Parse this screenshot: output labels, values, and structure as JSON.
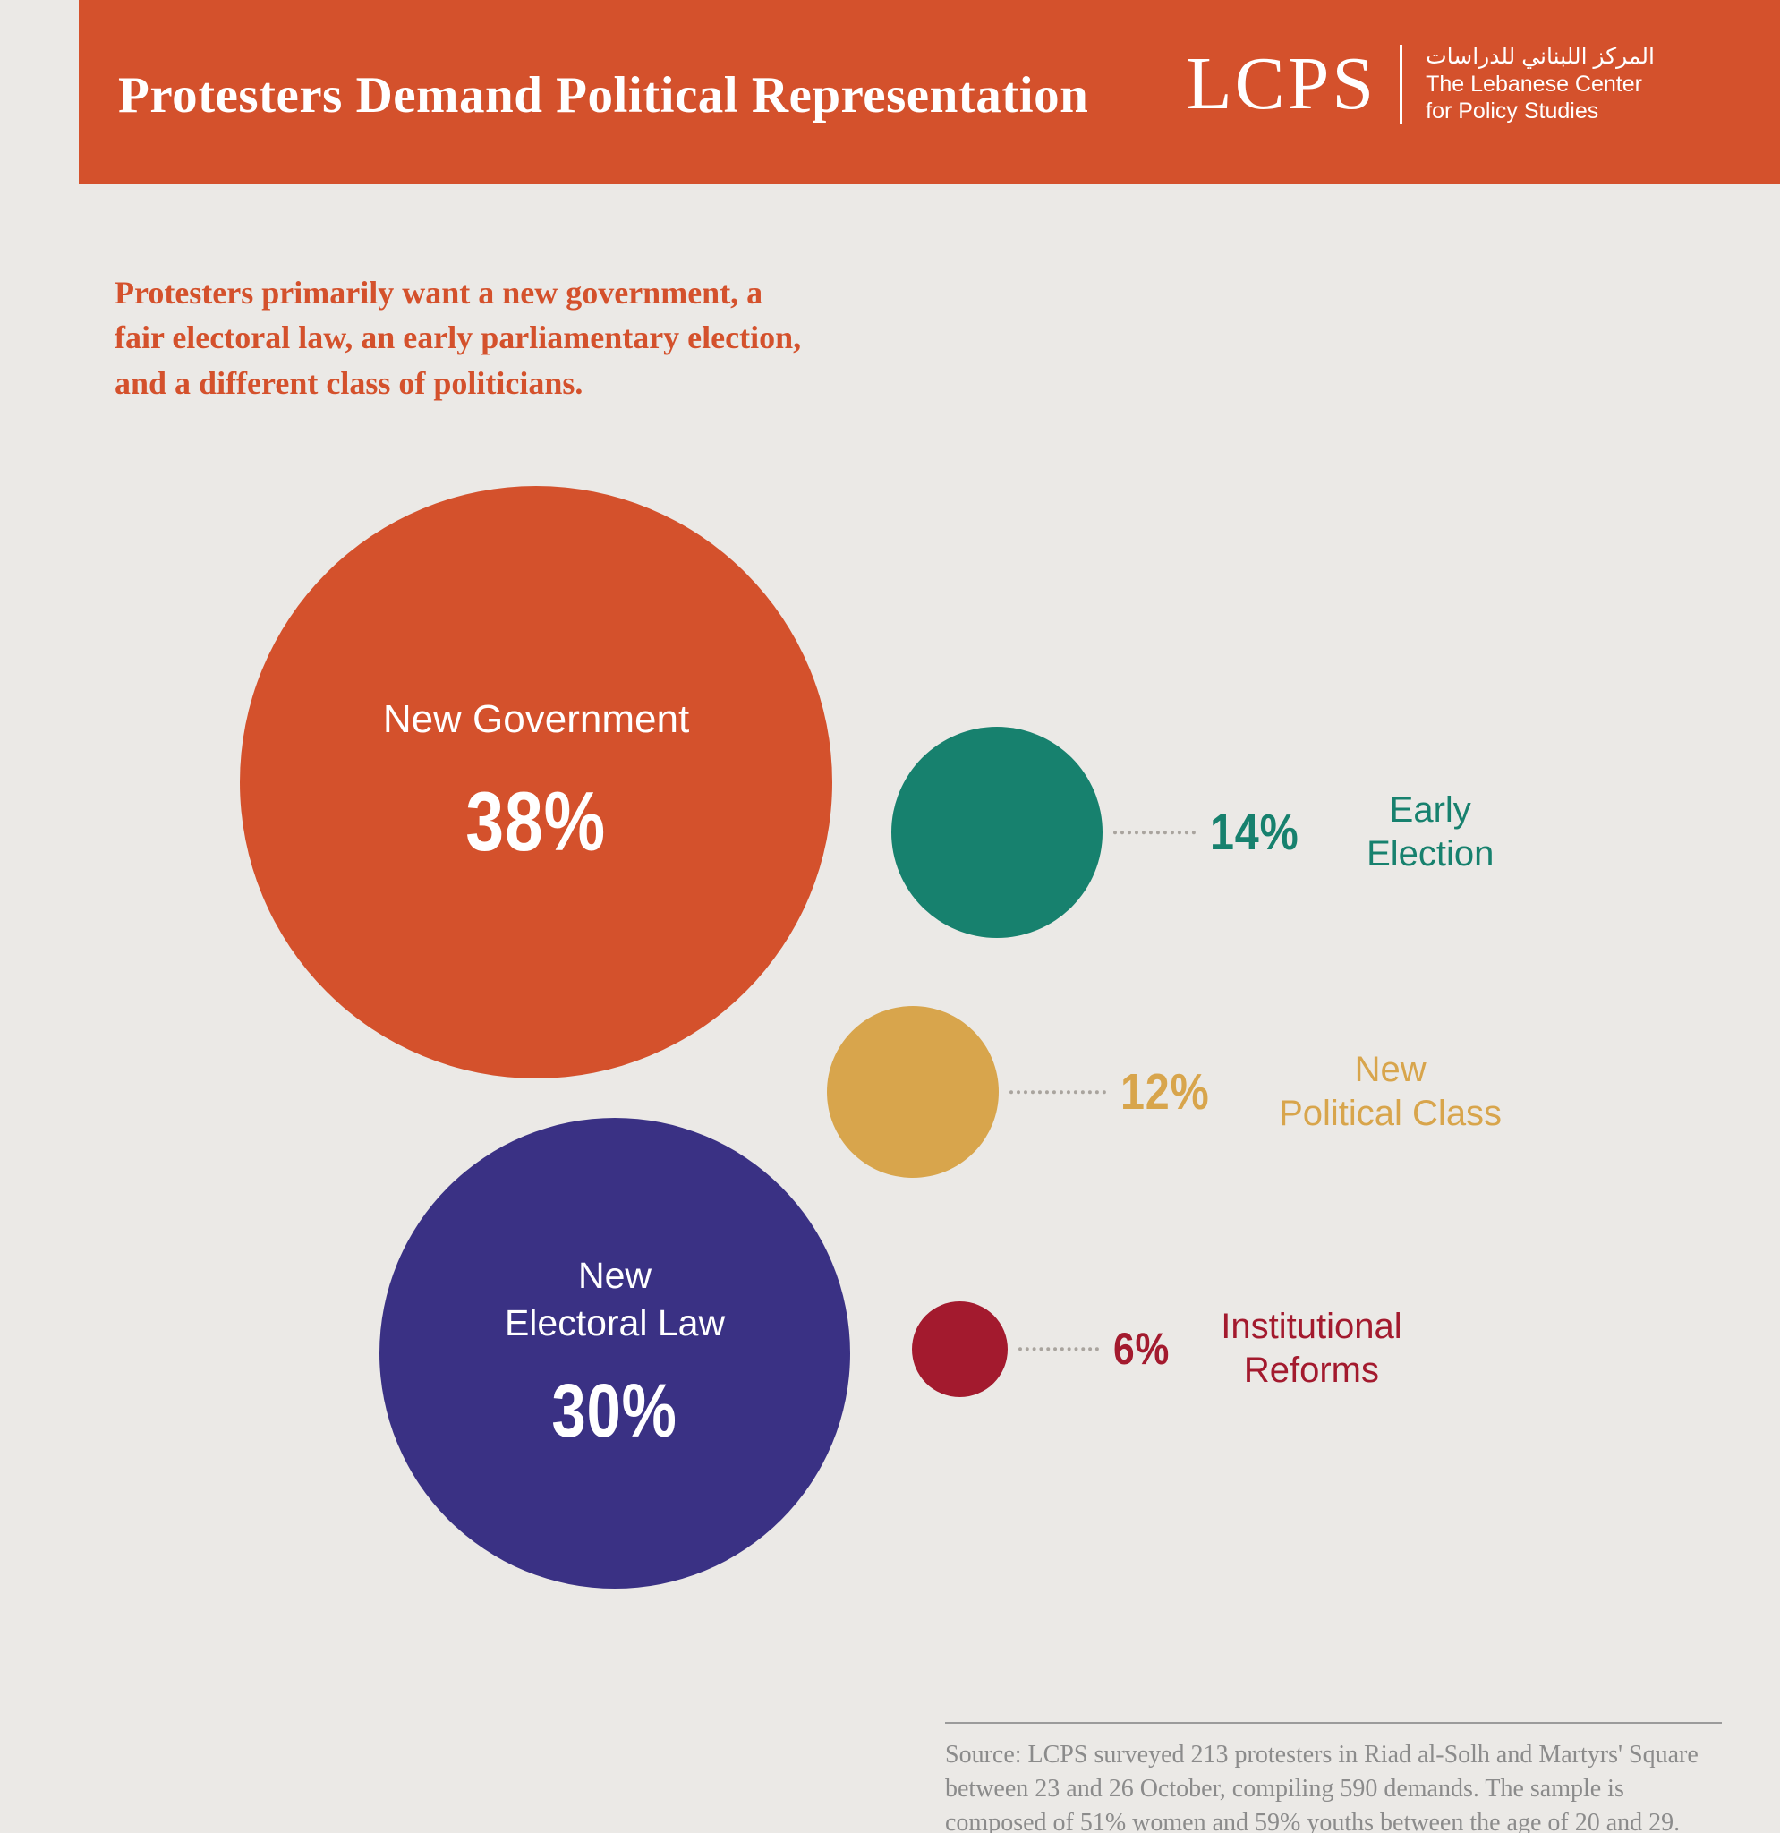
{
  "header": {
    "title": "Protesters Demand Political Representation",
    "background_color": "#d4512c",
    "logo": {
      "acronym": "LCPS",
      "arabic_name": "المركز اللبناني للدراسات",
      "name_line1": "The Lebanese Center",
      "name_line2": "for Policy Studies"
    }
  },
  "intro": {
    "text": "Protesters primarily want a new government, a\nfair electoral law, an early parliamentary election,\nand a different class of politicians.",
    "color": "#d4512c"
  },
  "chart_data": {
    "type": "bubble",
    "title": "Protesters Demand Political Representation",
    "series": [
      {
        "name": "New Government",
        "display_label": "New Government",
        "value": 38,
        "pct_text": "38%",
        "color": "#d4512c",
        "label_placement": "inside"
      },
      {
        "name": "New Electoral Law",
        "display_label": "New\nElectoral Law",
        "value": 30,
        "pct_text": "30%",
        "color": "#3a3184",
        "label_placement": "inside"
      },
      {
        "name": "Early Election",
        "display_label": "Early\nElection",
        "value": 14,
        "pct_text": "14%",
        "color": "#17816e",
        "label_placement": "right"
      },
      {
        "name": "New Political Class",
        "display_label": "New\nPolitical Class",
        "value": 12,
        "pct_text": "12%",
        "color": "#d8a54c",
        "label_placement": "right"
      },
      {
        "name": "Institutional Reforms",
        "display_label": "Institutional\nReforms",
        "value": 6,
        "pct_text": "6%",
        "color": "#a31a2e",
        "label_placement": "right"
      }
    ],
    "background_color": "#ebe9e6",
    "legend_position": "right-of-small-bubbles",
    "grid": false
  },
  "source": {
    "text": "Source: LCPS surveyed 213 protesters in Riad al-Solh and Martyrs' Square between 23 and 26 October, compiling 590 demands. The sample is composed of 51% women and 59% youths between the age of 20 and 29."
  }
}
